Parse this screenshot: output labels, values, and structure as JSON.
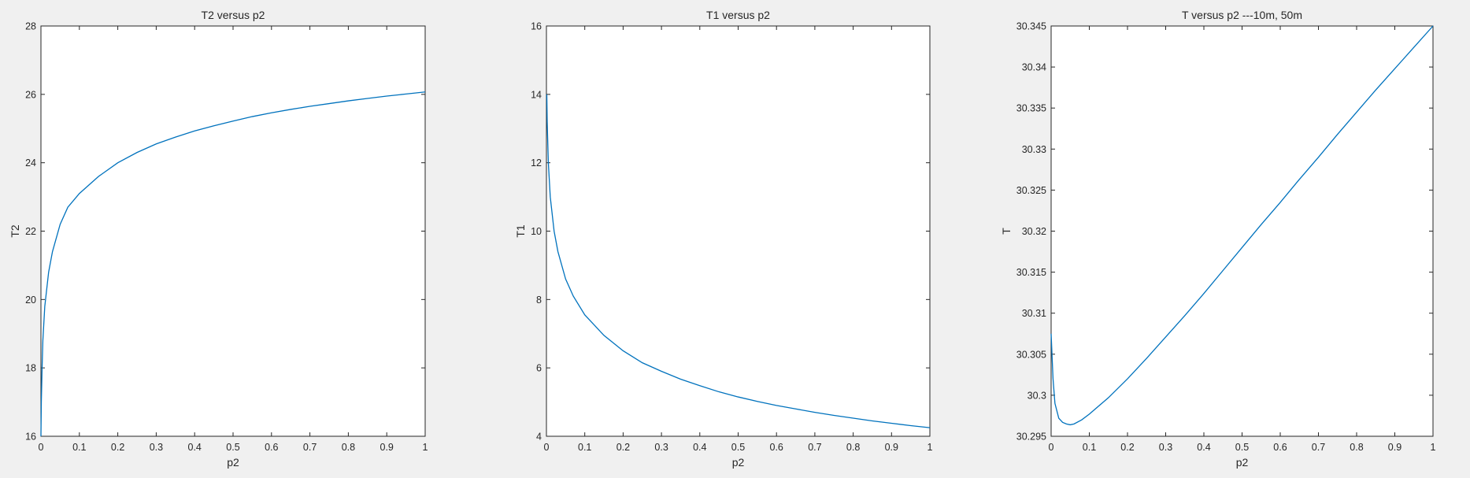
{
  "chart_data": [
    {
      "type": "line",
      "title": "T2 versus p2",
      "xlabel": "p2",
      "ylabel": "T2",
      "xlim": [
        0,
        1
      ],
      "ylim": [
        16,
        28
      ],
      "xticks": [
        "0",
        "0.1",
        "0.2",
        "0.3",
        "0.4",
        "0.5",
        "0.6",
        "0.7",
        "0.8",
        "0.9",
        "1"
      ],
      "yticks": [
        "16",
        "18",
        "20",
        "22",
        "24",
        "26",
        "28"
      ],
      "grid": false,
      "series": [
        {
          "color": "#0072BD",
          "x": [
            0,
            0.001,
            0.003,
            0.005,
            0.01,
            0.02,
            0.03,
            0.05,
            0.07,
            0.1,
            0.15,
            0.2,
            0.25,
            0.3,
            0.35,
            0.4,
            0.45,
            0.5,
            0.55,
            0.6,
            0.65,
            0.7,
            0.75,
            0.8,
            0.85,
            0.9,
            0.95,
            1.0
          ],
          "y": [
            16.0,
            17.0,
            18.0,
            18.8,
            19.8,
            20.8,
            21.4,
            22.2,
            22.7,
            23.1,
            23.6,
            24.0,
            24.3,
            24.55,
            24.75,
            24.93,
            25.08,
            25.22,
            25.35,
            25.46,
            25.56,
            25.65,
            25.73,
            25.81,
            25.88,
            25.95,
            26.01,
            26.07
          ]
        }
      ]
    },
    {
      "type": "line",
      "title": "T1 versus p2",
      "xlabel": "p2",
      "ylabel": "T1",
      "xlim": [
        0,
        1
      ],
      "ylim": [
        4,
        16
      ],
      "xticks": [
        "0",
        "0.1",
        "0.2",
        "0.3",
        "0.4",
        "0.5",
        "0.6",
        "0.7",
        "0.8",
        "0.9",
        "1"
      ],
      "yticks": [
        "4",
        "6",
        "8",
        "10",
        "12",
        "14",
        "16"
      ],
      "grid": false,
      "series": [
        {
          "color": "#0072BD",
          "x": [
            0.001,
            0.002,
            0.005,
            0.01,
            0.02,
            0.03,
            0.05,
            0.07,
            0.1,
            0.15,
            0.2,
            0.25,
            0.3,
            0.35,
            0.4,
            0.45,
            0.5,
            0.55,
            0.6,
            0.65,
            0.7,
            0.75,
            0.8,
            0.85,
            0.9,
            0.95,
            1.0
          ],
          "y": [
            14.0,
            13.2,
            12.0,
            11.0,
            10.0,
            9.4,
            8.6,
            8.1,
            7.55,
            6.95,
            6.5,
            6.15,
            5.9,
            5.67,
            5.48,
            5.3,
            5.15,
            5.02,
            4.9,
            4.8,
            4.7,
            4.61,
            4.53,
            4.45,
            4.38,
            4.31,
            4.25
          ]
        }
      ]
    },
    {
      "type": "line",
      "title": "T versus p2 ---10m, 50m",
      "xlabel": "p2",
      "ylabel": "T",
      "xlim": [
        0,
        1
      ],
      "ylim": [
        30.295,
        30.345
      ],
      "xticks": [
        "0",
        "0.1",
        "0.2",
        "0.3",
        "0.4",
        "0.5",
        "0.6",
        "0.7",
        "0.8",
        "0.9",
        "1"
      ],
      "yticks": [
        "30.295",
        "30.3",
        "30.305",
        "30.31",
        "30.315",
        "30.32",
        "30.325",
        "30.33",
        "30.335",
        "30.34",
        "30.345"
      ],
      "grid": false,
      "series": [
        {
          "color": "#0072BD",
          "x": [
            0.0,
            0.005,
            0.01,
            0.02,
            0.03,
            0.04,
            0.05,
            0.06,
            0.08,
            0.1,
            0.15,
            0.2,
            0.25,
            0.3,
            0.35,
            0.4,
            0.45,
            0.5,
            0.55,
            0.6,
            0.65,
            0.7,
            0.75,
            0.8,
            0.85,
            0.9,
            0.95,
            1.0
          ],
          "y": [
            30.3075,
            30.302,
            30.299,
            30.2972,
            30.2967,
            30.2965,
            30.2964,
            30.2965,
            30.297,
            30.2977,
            30.2997,
            30.302,
            30.3045,
            30.3071,
            30.3097,
            30.3124,
            30.3152,
            30.318,
            30.3208,
            30.3235,
            30.3263,
            30.329,
            30.3318,
            30.3345,
            30.3372,
            30.3398,
            30.3424,
            30.345
          ]
        }
      ]
    }
  ]
}
